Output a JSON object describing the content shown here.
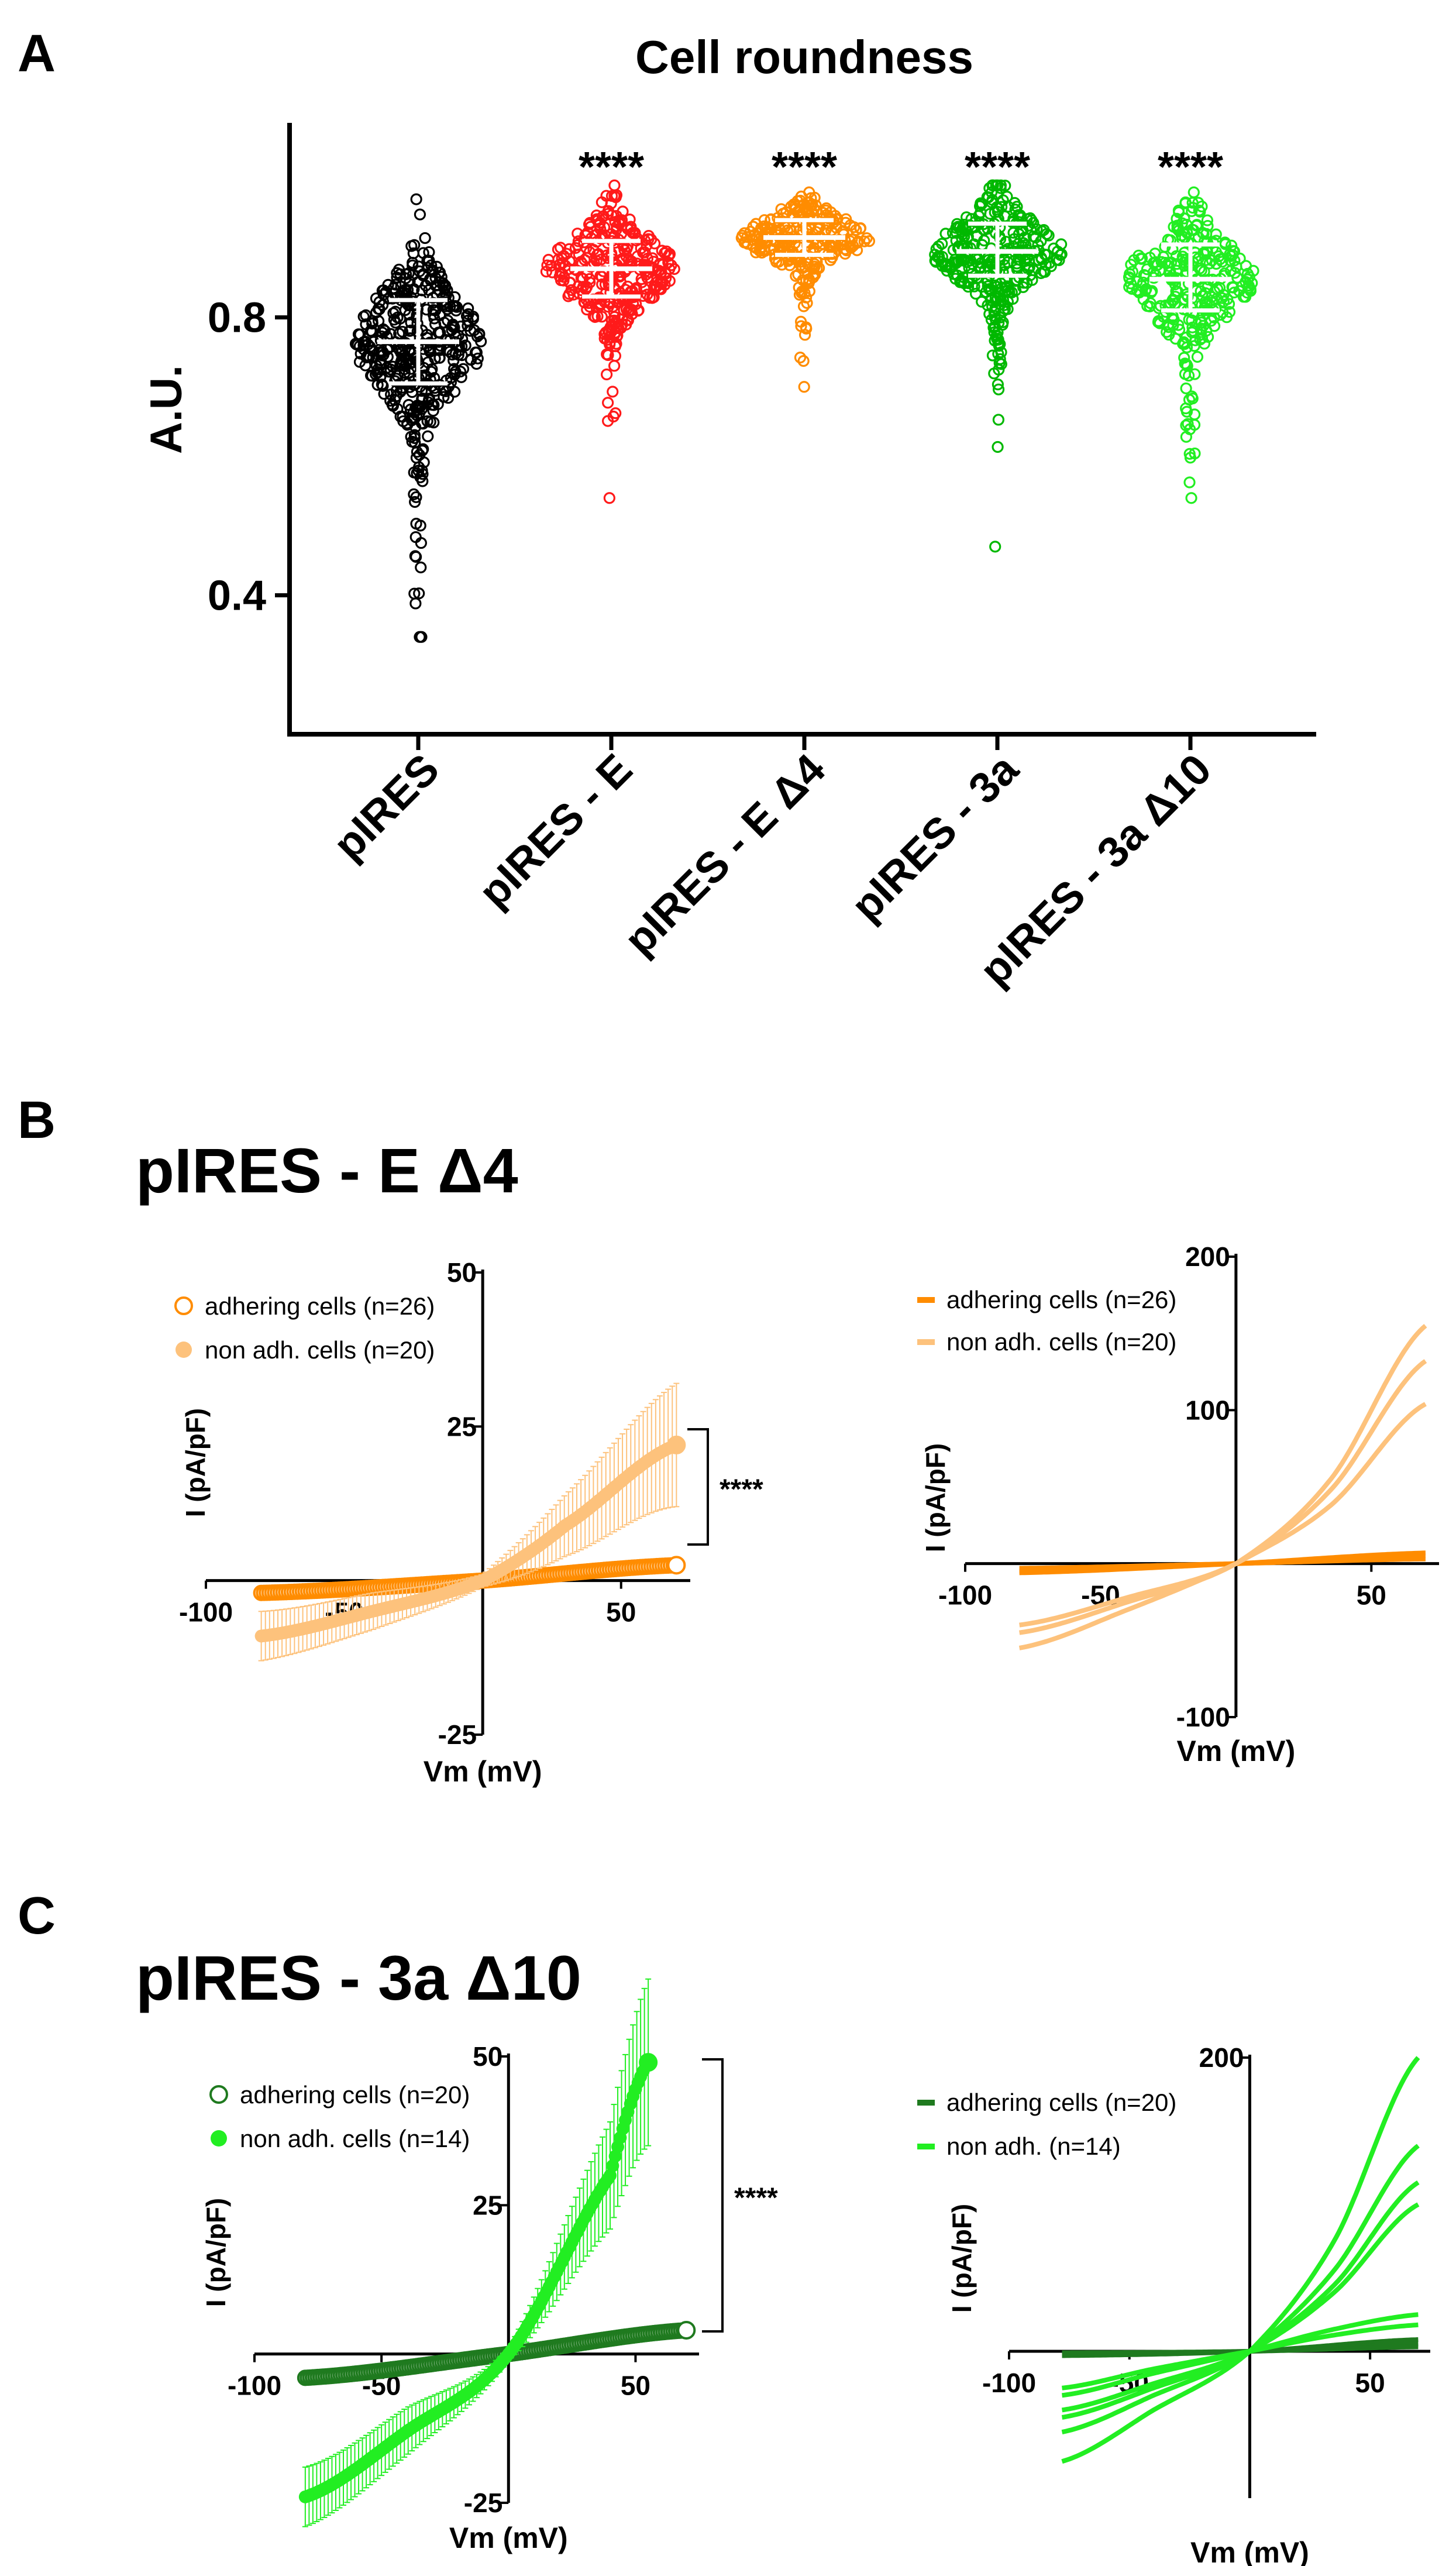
{
  "panel_labels": {
    "a": "A",
    "b": "B",
    "c": "C"
  },
  "colors": {
    "black": "#000000",
    "red": "#ff1a1a",
    "orange": "#ff8c00",
    "light_orange": "#fdc27c",
    "green": "#00b800",
    "dark_green": "#1f7a1f",
    "light_green": "#22ee22"
  },
  "chart_data": [
    {
      "id": "A",
      "type": "scatter",
      "title": "Cell roundness",
      "ylabel": "A.U.",
      "ylim": [
        0.2,
        1.08
      ],
      "yticks": [
        0.4,
        0.8
      ],
      "ytick_labels": [
        "0.4",
        "0.8"
      ],
      "categories": [
        "pIRES",
        "pIRES - E",
        "pIRES - E Δ4",
        "pIRES - 3a",
        "pIRES - 3a Δ10"
      ],
      "significance": [
        "",
        "****",
        "****",
        "****",
        "****"
      ],
      "series": [
        {
          "name": "pIRES",
          "color": "black",
          "mean": 0.765,
          "sd_low": 0.705,
          "sd_high": 0.825,
          "min": 0.34,
          "max": 0.97,
          "n": 420
        },
        {
          "name": "pIRES - E",
          "color": "red",
          "mean": 0.87,
          "sd_low": 0.83,
          "sd_high": 0.91,
          "min": 0.54,
          "max": 0.99,
          "n": 330
        },
        {
          "name": "pIRES - E Δ4",
          "color": "orange",
          "mean": 0.915,
          "sd_low": 0.89,
          "sd_high": 0.94,
          "min": 0.7,
          "max": 0.98,
          "n": 260
        },
        {
          "name": "pIRES - 3a",
          "color": "green",
          "mean": 0.895,
          "sd_low": 0.86,
          "sd_high": 0.935,
          "min": 0.47,
          "max": 0.99,
          "n": 320
        },
        {
          "name": "pIRES - 3a Δ10",
          "color": "light_green",
          "mean": 0.855,
          "sd_low": 0.81,
          "sd_high": 0.905,
          "min": 0.54,
          "max": 0.98,
          "n": 300
        }
      ]
    },
    {
      "id": "B-left",
      "type": "line",
      "panel_title": "pIRES - E Δ4",
      "xlabel": "Vm (mV)",
      "ylabel": "I (pA/pF)",
      "xlim": [
        -100,
        75
      ],
      "ylim": [
        -25,
        50
      ],
      "xticks": [
        -100,
        -50,
        50
      ],
      "xtick_labels": [
        "-100",
        "-50",
        "50"
      ],
      "yticks": [
        -25,
        25,
        50
      ],
      "ytick_labels": [
        "-25",
        "25",
        "50"
      ],
      "significance": "****",
      "series": [
        {
          "name": "adhering cells (n=26)",
          "color": "orange",
          "marker": "open-circle",
          "x": [
            -80,
            0,
            70
          ],
          "y": [
            -2,
            0,
            2.5
          ],
          "err": [
            0.5,
            0.3,
            0.5
          ]
        },
        {
          "name": "non adh. cells (n=20)",
          "color": "light_orange",
          "marker": "filled-circle",
          "x": [
            -80,
            -40,
            0,
            30,
            70
          ],
          "y": [
            -9,
            -5,
            0,
            9,
            22
          ],
          "err": [
            4,
            3,
            1,
            5,
            10
          ]
        }
      ]
    },
    {
      "id": "B-right",
      "type": "line",
      "xlabel": "Vm (mV)",
      "ylabel": "I (pA/pF)",
      "xlim": [
        -100,
        75
      ],
      "ylim": [
        -100,
        200
      ],
      "xticks": [
        -100,
        -50,
        50
      ],
      "xtick_labels": [
        "-100",
        "-50",
        "50"
      ],
      "yticks": [
        -100,
        100,
        200
      ],
      "ytick_labels": [
        "-100",
        "100",
        "200"
      ],
      "series": [
        {
          "name": "adhering cells (n=26)",
          "color": "orange",
          "traces": [
            {
              "x": [
                -80,
                0,
                70
              ],
              "y": [
                -5,
                0,
                5
              ]
            },
            {
              "x": [
                -80,
                0,
                70
              ],
              "y": [
                -3,
                0,
                3
              ]
            },
            {
              "x": [
                -80,
                0,
                70
              ],
              "y": [
                -6,
                0,
                7
              ]
            }
          ]
        },
        {
          "name": "non adh. cells (n=20)",
          "color": "light_orange",
          "traces": [
            {
              "x": [
                -80,
                -40,
                0,
                35,
                70
              ],
              "y": [
                -45,
                -25,
                0,
                55,
                155
              ]
            },
            {
              "x": [
                -80,
                -40,
                0,
                35,
                70
              ],
              "y": [
                -40,
                -22,
                0,
                48,
                132
              ]
            },
            {
              "x": [
                -80,
                -40,
                0,
                35,
                70
              ],
              "y": [
                -55,
                -30,
                0,
                38,
                104
              ]
            }
          ]
        }
      ]
    },
    {
      "id": "C-left",
      "type": "line",
      "panel_title": "pIRES - 3a Δ10",
      "xlabel": "Vm (mV)",
      "ylabel": "I (pA/pF)",
      "xlim": [
        -100,
        75
      ],
      "ylim": [
        -25,
        50
      ],
      "xticks": [
        -100,
        -50,
        50
      ],
      "xtick_labels": [
        "-100",
        "-50",
        "50"
      ],
      "yticks": [
        -25,
        25,
        50
      ],
      "ytick_labels": [
        "-25",
        "25",
        "50"
      ],
      "significance": "****",
      "series": [
        {
          "name": "adhering cells (n=20)",
          "color": "dark_green",
          "marker": "open-circle",
          "x": [
            -80,
            0,
            70
          ],
          "y": [
            -4,
            0,
            4
          ]
        },
        {
          "name": "non adh. cells (n=14)",
          "color": "light_green",
          "marker": "filled-circle",
          "x": [
            -80,
            -40,
            0,
            40,
            55
          ],
          "y": [
            -24,
            -13,
            0,
            30,
            49
          ],
          "err": [
            5,
            4,
            1,
            9,
            14
          ]
        }
      ]
    },
    {
      "id": "C-right",
      "type": "line",
      "xlabel": "Vm (mV)",
      "ylabel": "I (pA/pF)",
      "xlim": [
        -100,
        75
      ],
      "ylim": [
        -100,
        200
      ],
      "xticks": [
        -100,
        -50,
        50
      ],
      "xtick_labels": [
        "-100",
        "-50",
        "50"
      ],
      "yticks": [
        200
      ],
      "ytick_labels": [
        "200"
      ],
      "series": [
        {
          "name": "adhering cells (n=20)",
          "color": "dark_green",
          "traces": [
            {
              "x": [
                -78,
                0,
                70
              ],
              "y": [
                -3,
                0,
                8
              ]
            },
            {
              "x": [
                -78,
                0,
                70
              ],
              "y": [
                -2,
                0,
                5
              ]
            },
            {
              "x": [
                -78,
                0,
                70
              ],
              "y": [
                -1,
                0,
                3
              ]
            }
          ]
        },
        {
          "name": "non adh. (n=14)",
          "color": "light_green",
          "traces": [
            {
              "x": [
                -78,
                -40,
                0,
                35,
                70
              ],
              "y": [
                -75,
                -40,
                0,
                75,
                200
              ]
            },
            {
              "x": [
                -78,
                -40,
                0,
                35,
                70
              ],
              "y": [
                -55,
                -30,
                0,
                55,
                140
              ]
            },
            {
              "x": [
                -78,
                -40,
                0,
                35,
                70
              ],
              "y": [
                -45,
                -25,
                0,
                45,
                115
              ]
            },
            {
              "x": [
                -78,
                -40,
                0,
                35,
                70
              ],
              "y": [
                -40,
                -22,
                0,
                40,
                100
              ]
            },
            {
              "x": [
                -78,
                -40,
                0,
                35,
                70
              ],
              "y": [
                -30,
                -15,
                0,
                15,
                25
              ]
            },
            {
              "x": [
                -78,
                -40,
                0,
                35,
                70
              ],
              "y": [
                -25,
                -12,
                0,
                11,
                18
              ]
            }
          ]
        }
      ]
    }
  ]
}
